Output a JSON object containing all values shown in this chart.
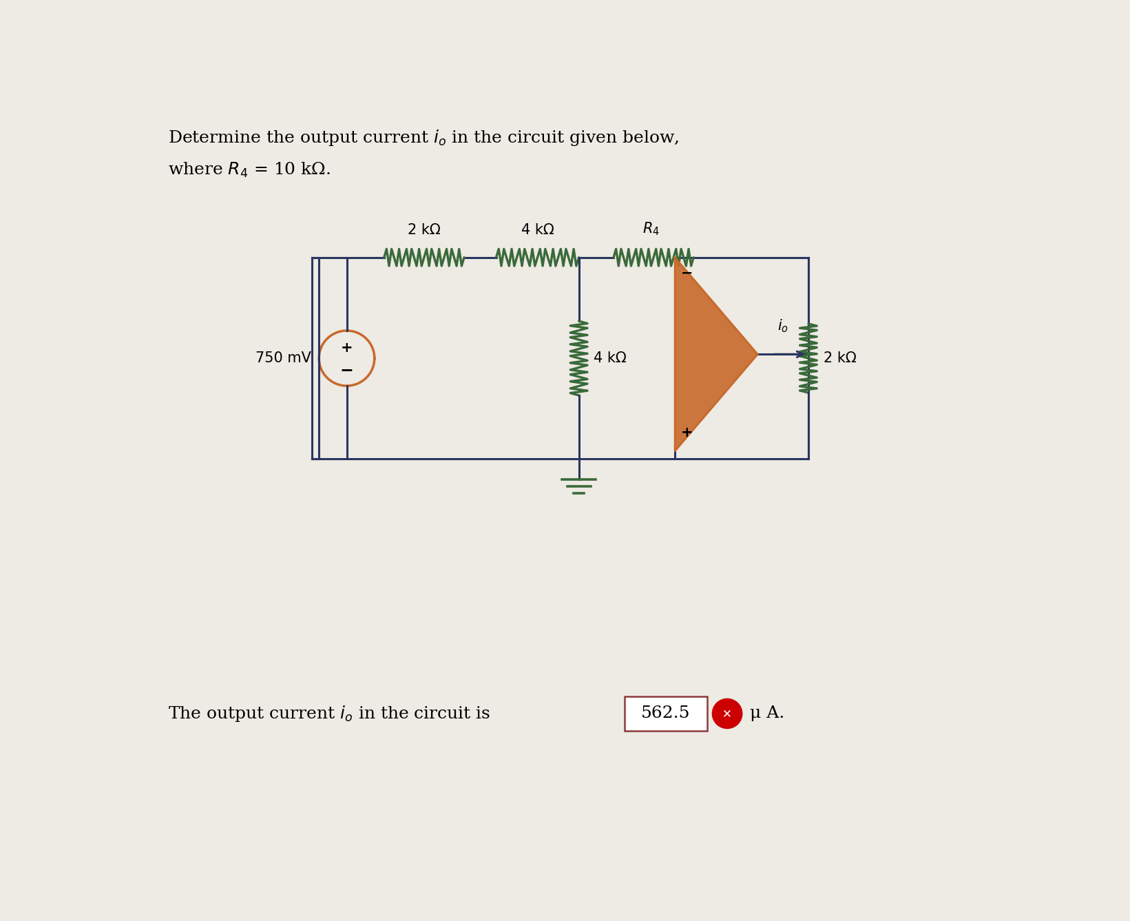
{
  "bg_color": "#eeeae4",
  "wire_color": "#2a3560",
  "resistor_color": "#3a6a3a",
  "opamp_fill": "#c8692a",
  "source_color": "#c8692a",
  "answer_box_color": "#8B3A3A",
  "answer_x_button_color": "#cc0000",
  "label_2k_top": "2 kΩ",
  "label_4k_top": "4 kΩ",
  "label_R4": "R",
  "label_R4_sub": "4",
  "label_4k_mid": "4 kΩ",
  "label_2k_right": "2 kΩ",
  "label_750mv": "750 mV",
  "answer_value": "562.5"
}
